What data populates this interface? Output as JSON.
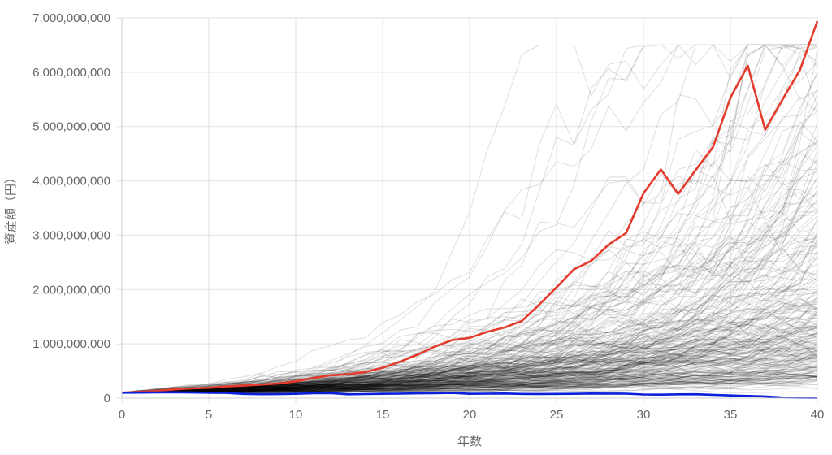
{
  "chart_data": {
    "type": "line",
    "xlabel": "年数",
    "ylabel": "資産額（円）",
    "xlim": [
      0,
      40
    ],
    "ylim": [
      0,
      7000000000
    ],
    "x_ticks": [
      0,
      5,
      10,
      15,
      20,
      25,
      30,
      35,
      40
    ],
    "y_ticks": [
      0,
      1000000000,
      2000000000,
      3000000000,
      4000000000,
      5000000000,
      6000000000,
      7000000000
    ],
    "x_tick_labels": [
      "0",
      "5",
      "10",
      "15",
      "20",
      "25",
      "30",
      "35",
      "40"
    ],
    "y_tick_labels": [
      "0",
      "1,000,000,000",
      "2,000,000,000",
      "3,000,000,000",
      "4,000,000,000",
      "5,000,000,000",
      "6,000,000,000",
      "7,000,000,000"
    ],
    "grid": true,
    "x": [
      0,
      1,
      2,
      3,
      4,
      5,
      6,
      7,
      8,
      9,
      10,
      11,
      12,
      13,
      14,
      15,
      16,
      17,
      18,
      19,
      20,
      21,
      22,
      23,
      24,
      25,
      26,
      27,
      28,
      29,
      30,
      31,
      32,
      33,
      34,
      35,
      36,
      37,
      38,
      39,
      40
    ],
    "series": [
      {
        "color": "#e53b2c",
        "values": [
          100000000,
          115000000,
          135000000,
          160000000,
          180000000,
          190000000,
          215000000,
          230000000,
          250000000,
          270000000,
          310000000,
          370000000,
          420000000,
          440000000,
          480000000,
          560000000,
          670000000,
          800000000,
          950000000,
          1070000000,
          1110000000,
          1220000000,
          1300000000,
          1420000000,
          1720000000,
          2040000000,
          2370000000,
          2530000000,
          2830000000,
          3040000000,
          3770000000,
          4210000000,
          3760000000,
          4200000000,
          4620000000,
          5530000000,
          6120000000,
          4940000000,
          5500000000,
          6040000000,
          6940000000
        ]
      },
      {
        "color": "#0b1fdc",
        "values": [
          100000000,
          102000000,
          105000000,
          107000000,
          103000000,
          98000000,
          95000000,
          78000000,
          72000000,
          74000000,
          80000000,
          90000000,
          92000000,
          70000000,
          75000000,
          80000000,
          82000000,
          88000000,
          90000000,
          95000000,
          80000000,
          82000000,
          85000000,
          78000000,
          76000000,
          78000000,
          80000000,
          85000000,
          84000000,
          82000000,
          68000000,
          65000000,
          70000000,
          72000000,
          62000000,
          50000000,
          40000000,
          32000000,
          12000000,
          8000000,
          6000000
        ]
      }
    ],
    "simulation_band": {
      "color": "#000000",
      "count": 260,
      "start": 100000000,
      "median_final": 1400000000,
      "max_final": 6500000000,
      "min_final": 200000000
    }
  }
}
